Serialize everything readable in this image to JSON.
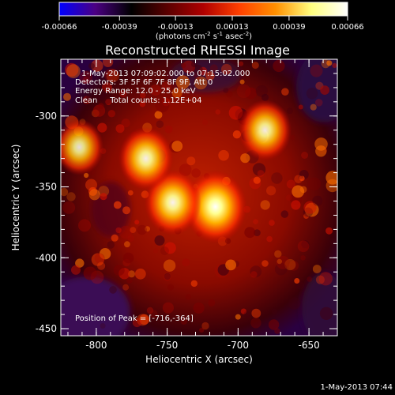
{
  "colorbar": {
    "ticks": [
      "-0.00066",
      "-0.00039",
      "-0.00013",
      "0.00013",
      "0.00039",
      "0.00066"
    ],
    "units_main": "(photons cm",
    "units_exp1": "-2",
    "units_mid": " s",
    "units_exp2": "-1",
    "units_end": " asec",
    "units_exp3": "-2",
    "units_close": ")",
    "gradient": [
      "#0000ff",
      "#4b0082",
      "#000000",
      "#5a0000",
      "#b00000",
      "#ff4000",
      "#ff9000",
      "#ffff80",
      "#ffffff"
    ]
  },
  "title": "Reconstructed RHESSI Image",
  "info": {
    "line1": "1-May-2013 07:09:02.000 to 07:15:02.000",
    "line2": "Detectors: 3F 5F 6F 7F 8F 9F, Att 0",
    "line3": "Energy Range: 12.0 - 25.0 keV",
    "line4": "Clean     Total counts: 1.12E+04",
    "peak": "Position of Peak = [-716,-364]"
  },
  "axes": {
    "xlabel": "Heliocentric X (arcsec)",
    "ylabel": "Heliocentric Y (arcsec)",
    "xticks": [
      "-800",
      "-750",
      "-700",
      "-650"
    ],
    "yticks": [
      "-300",
      "-350",
      "-400",
      "-450"
    ],
    "xrange": [
      -825,
      -630
    ],
    "yrange": [
      -455,
      -260
    ]
  },
  "sources": [
    {
      "x": -716,
      "y": -364,
      "intensity": 1.0
    },
    {
      "x": -746,
      "y": -361,
      "intensity": 0.85
    },
    {
      "x": -765,
      "y": -330,
      "intensity": 0.8
    },
    {
      "x": -681,
      "y": -310,
      "intensity": 0.75
    },
    {
      "x": -812,
      "y": -322,
      "intensity": 0.65
    }
  ],
  "timestamp": "1-May-2013 07:44"
}
